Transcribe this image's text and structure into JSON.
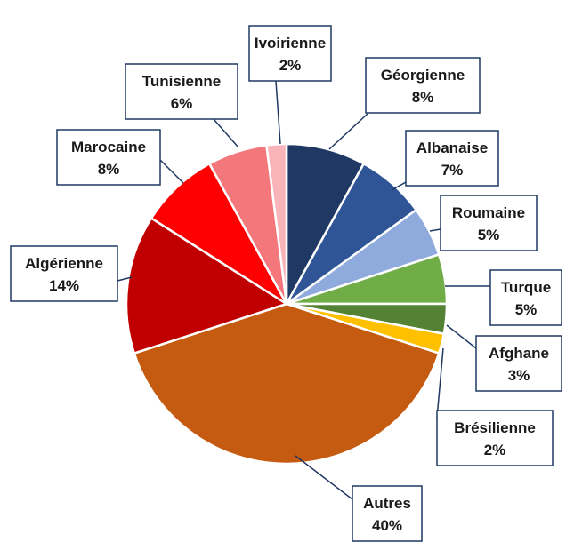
{
  "chart_data": {
    "type": "pie",
    "title": "",
    "slices": [
      {
        "label": "Géorgienne",
        "value": 8,
        "value_label": "8%",
        "color": "#1f3864"
      },
      {
        "label": "Albanaise",
        "value": 7,
        "value_label": "7%",
        "color": "#2f5597"
      },
      {
        "label": "Roumaine",
        "value": 5,
        "value_label": "5%",
        "color": "#8faadc"
      },
      {
        "label": "Turque",
        "value": 5,
        "value_label": "5%",
        "color": "#70ad47"
      },
      {
        "label": "Afghane",
        "value": 3,
        "value_label": "3%",
        "color": "#548235"
      },
      {
        "label": "Brésilienne",
        "value": 2,
        "value_label": "2%",
        "color": "#ffc000"
      },
      {
        "label": "Autres",
        "value": 40,
        "value_label": "40%",
        "color": "#c55a11"
      },
      {
        "label": "Algérienne",
        "value": 14,
        "value_label": "14%",
        "color": "#c00000"
      },
      {
        "label": "Marocaine",
        "value": 8,
        "value_label": "8%",
        "color": "#ff0000"
      },
      {
        "label": "Tunisienne",
        "value": 6,
        "value_label": "6%",
        "color": "#f4777b"
      },
      {
        "label": "Ivoirienne",
        "value": 2,
        "value_label": "2%",
        "color": "#f8b4b8"
      }
    ]
  }
}
